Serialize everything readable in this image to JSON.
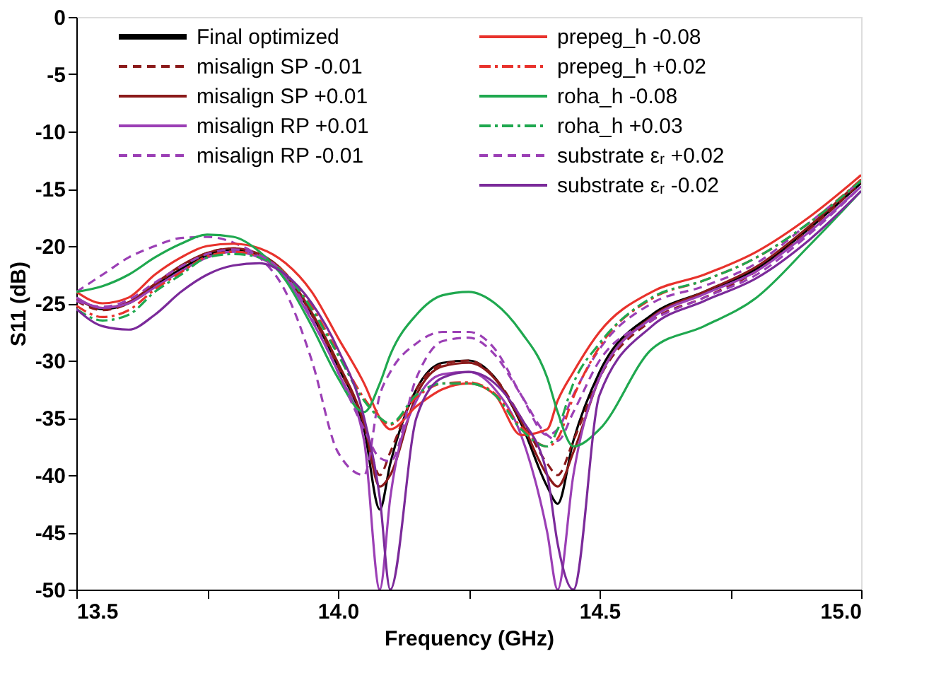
{
  "chart_data": {
    "type": "line",
    "xlabel": "Frequency (GHz)",
    "ylabel": "S11 (dB)",
    "xlim": [
      13.5,
      15.0
    ],
    "xticks": [
      13.5,
      {
        "value": 13.75,
        "label": null
      },
      {
        "value": 14.0,
        "label": "14.0"
      },
      {
        "value": 14.25,
        "label": null
      },
      14.5,
      {
        "value": 14.75,
        "label": null
      },
      {
        "value": 15.0,
        "label": "15.0"
      }
    ],
    "ylim": [
      -50,
      0
    ],
    "yticks": [
      0,
      -5,
      -10,
      -15,
      -20,
      -25,
      -30,
      -35,
      -40,
      -45,
      -50
    ],
    "grid": false,
    "legend": "top",
    "x": [
      13.5,
      13.55,
      13.6,
      13.65,
      13.7,
      13.75,
      13.8,
      13.85,
      13.9,
      13.95,
      14.0,
      14.05,
      14.08,
      14.1,
      14.15,
      14.2,
      14.25,
      14.3,
      14.35,
      14.4,
      14.42,
      14.45,
      14.5,
      14.6,
      14.7,
      14.8,
      14.9,
      15.0
    ],
    "series": [
      {
        "name": "Final optimized",
        "color": "#000000",
        "line_style": "solid",
        "values": [
          -24.5,
          -25.5,
          -25,
          -23.5,
          -22,
          -20.8,
          -20.3,
          -20.8,
          -22.5,
          -26,
          -30.5,
          -36,
          -43,
          -39,
          -32.5,
          -30.2,
          -30,
          -31.5,
          -35.5,
          -41,
          -42.5,
          -37,
          -31,
          -26,
          -24,
          -22,
          -18.5,
          -14.5
        ]
      },
      {
        "name": "misalign SP -0.01",
        "color": "#8b1a1a",
        "line_style": "dashed",
        "values": [
          -24.8,
          -25.6,
          -25,
          -23.4,
          -21.8,
          -20.6,
          -20.2,
          -20.8,
          -22.5,
          -26,
          -30.5,
          -35.5,
          -40,
          -38,
          -32.5,
          -30.3,
          -30,
          -31.5,
          -35,
          -39,
          -40,
          -37,
          -31.5,
          -26.5,
          -24.5,
          -22.2,
          -18.6,
          -14.4
        ]
      },
      {
        "name": "misalign SP +0.01",
        "color": "#8b1a1a",
        "line_style": "solid",
        "values": [
          -24.6,
          -25.4,
          -24.9,
          -23.3,
          -21.7,
          -20.6,
          -20.2,
          -20.7,
          -22.4,
          -25.8,
          -30.2,
          -35.5,
          -41,
          -40,
          -33,
          -30.5,
          -30.2,
          -31.6,
          -35.3,
          -40,
          -41,
          -38,
          -31.5,
          -26.2,
          -24,
          -21.8,
          -18.3,
          -14.2
        ]
      },
      {
        "name": "misalign RP +0.01",
        "color": "#9b3fb5",
        "line_style": "solid",
        "values": [
          -24.5,
          -25.4,
          -25,
          -23.6,
          -22.2,
          -21,
          -20.5,
          -21,
          -22.8,
          -26.5,
          -31,
          -37,
          -50,
          -42,
          -33.5,
          -31.2,
          -31,
          -32.5,
          -36.5,
          -45,
          -50,
          -40,
          -31.5,
          -26.3,
          -24.2,
          -22.2,
          -18.8,
          -14.8
        ]
      },
      {
        "name": "misalign RP -0.01",
        "color": "#9b3fb5",
        "line_style": "dashed",
        "values": [
          -24,
          -22.5,
          -21,
          -20,
          -19.3,
          -19.2,
          -19.7,
          -21,
          -24,
          -30,
          -38,
          -40,
          -33,
          -31,
          -28.5,
          -27.5,
          -27.5,
          -29,
          -33,
          -36.5,
          -36,
          -33,
          -29,
          -25,
          -23.5,
          -21.5,
          -18,
          -14.3
        ]
      },
      {
        "name": "prepeg_h -0.08",
        "color": "#e8322c",
        "line_style": "solid",
        "values": [
          -24,
          -25,
          -24.5,
          -22.5,
          -21,
          -20,
          -19.8,
          -20.2,
          -21.5,
          -24,
          -28,
          -32,
          -35,
          -36,
          -34,
          -32.5,
          -32,
          -33,
          -36.5,
          -36,
          -33.5,
          -31,
          -27.5,
          -24,
          -22.5,
          -20.5,
          -17.5,
          -13.8
        ]
      },
      {
        "name": "prepeg_h +0.02",
        "color": "#e8322c",
        "line_style": "dashdot",
        "values": [
          -25.2,
          -26.2,
          -25.6,
          -23.8,
          -22.3,
          -20.9,
          -20.5,
          -20.9,
          -22.4,
          -25.3,
          -29.3,
          -33.3,
          -35,
          -35.6,
          -33.2,
          -32,
          -31.9,
          -32.9,
          -35.8,
          -37.5,
          -36.8,
          -33.2,
          -28.8,
          -24.6,
          -23,
          -21,
          -18,
          -14.2
        ]
      },
      {
        "name": "roha_h -0.08",
        "color": "#1fa84f",
        "line_style": "solid",
        "values": [
          -24,
          -23.5,
          -22.5,
          -21,
          -19.8,
          -19,
          -19.2,
          -20.5,
          -23,
          -27,
          -31.5,
          -34.5,
          -32,
          -29.5,
          -26,
          -24.3,
          -24,
          -25,
          -27.5,
          -31.5,
          -34.5,
          -37.5,
          -36,
          -29,
          -27,
          -24.5,
          -20,
          -15.2
        ]
      },
      {
        "name": "roha_h +0.03",
        "color": "#1fa84f",
        "line_style": "dashdot",
        "values": [
          -25.5,
          -26.5,
          -26,
          -24,
          -22.5,
          -21,
          -20.7,
          -21,
          -22.5,
          -25.5,
          -29.5,
          -33.5,
          -35,
          -35.5,
          -33,
          -32,
          -32,
          -33,
          -36,
          -37.5,
          -36,
          -32,
          -28.5,
          -24.5,
          -23,
          -21,
          -18,
          -14.3
        ]
      },
      {
        "name": "substrate εᵣ +0.02",
        "color": "#9b3fb5",
        "line_style": "dashed",
        "values": [
          -24.8,
          -25.3,
          -24.7,
          -23.2,
          -21.8,
          -20.7,
          -20.3,
          -20.8,
          -22.6,
          -26.3,
          -31,
          -36,
          -38.5,
          -38.8,
          -31.5,
          -28.3,
          -28,
          -29.5,
          -33,
          -36.5,
          -37,
          -34.5,
          -30,
          -26.5,
          -24.5,
          -22.5,
          -19,
          -14.8
        ]
      },
      {
        "name": "substrate εᵣ -0.02",
        "color": "#7b2a9a",
        "line_style": "solid",
        "values": [
          -25.5,
          -27,
          -27.3,
          -26,
          -24,
          -22.5,
          -21.7,
          -21.5,
          -22.5,
          -25,
          -29,
          -35,
          -42,
          -50,
          -35,
          -31.5,
          -31,
          -32,
          -35,
          -40,
          -46,
          -50,
          -33,
          -27,
          -24.8,
          -22.8,
          -19.5,
          -15.2
        ]
      }
    ]
  }
}
